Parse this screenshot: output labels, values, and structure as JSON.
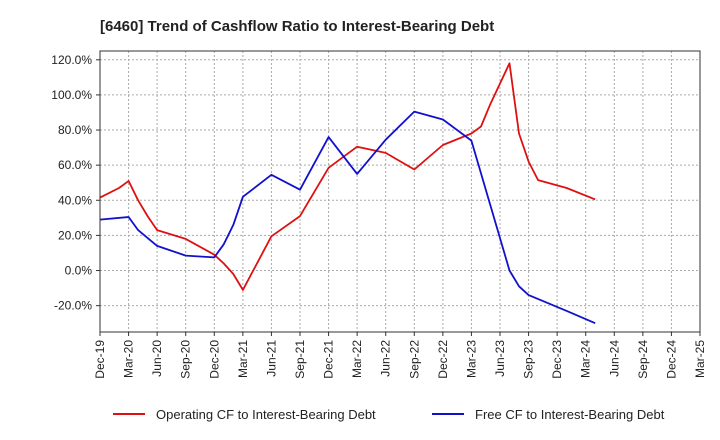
{
  "chart_data": {
    "type": "line",
    "title": "[6460]  Trend of Cashflow Ratio to Interest-Bearing Debt",
    "xlabel": "",
    "ylabel": "",
    "ylim": [
      -35,
      125
    ],
    "y_ticks": [
      -20,
      0,
      20,
      40,
      60,
      80,
      100,
      120
    ],
    "y_tick_labels": [
      "-20.0%",
      "0.0%",
      "20.0%",
      "40.0%",
      "60.0%",
      "80.0%",
      "100.0%",
      "120.0%"
    ],
    "x_tick_labels": [
      "Dec-19",
      "Mar-20",
      "Jun-20",
      "Sep-20",
      "Dec-20",
      "Mar-21",
      "Jun-21",
      "Sep-21",
      "Dec-21",
      "Mar-22",
      "Jun-22",
      "Sep-22",
      "Dec-22",
      "Mar-23",
      "Jun-23",
      "Sep-23",
      "Dec-23",
      "Mar-24",
      "Jun-24",
      "Sep-24",
      "Dec-24",
      "Mar-25"
    ],
    "x_range_months": [
      0,
      63
    ],
    "grid": true,
    "legend_position": "bottom",
    "series": [
      {
        "name": "Operating CF to Interest-Bearing Debt",
        "color": "#dd1111",
        "points": [
          [
            0,
            41.5
          ],
          [
            2,
            47
          ],
          [
            3,
            51
          ],
          [
            4,
            40
          ],
          [
            5,
            31
          ],
          [
            6,
            23
          ],
          [
            9,
            18
          ],
          [
            12,
            9
          ],
          [
            13,
            4
          ],
          [
            14,
            -2
          ],
          [
            15,
            -11
          ],
          [
            18,
            19.5
          ],
          [
            21,
            31
          ],
          [
            24,
            58.5
          ],
          [
            27,
            70.5
          ],
          [
            30,
            67
          ],
          [
            33,
            57.5
          ],
          [
            36,
            71.5
          ],
          [
            39,
            78
          ],
          [
            40,
            82
          ],
          [
            41,
            95
          ],
          [
            43,
            118
          ],
          [
            44,
            78
          ],
          [
            45,
            62
          ],
          [
            46,
            51.5
          ],
          [
            49,
            47
          ],
          [
            52,
            40.5
          ]
        ]
      },
      {
        "name": "Free CF to Interest-Bearing Debt",
        "color": "#1111cc",
        "points": [
          [
            0,
            29
          ],
          [
            3,
            30.5
          ],
          [
            4,
            23
          ],
          [
            6,
            14
          ],
          [
            9,
            8.5
          ],
          [
            12,
            7.5
          ],
          [
            13,
            15
          ],
          [
            14,
            26
          ],
          [
            15,
            42
          ],
          [
            18,
            54.5
          ],
          [
            21,
            46
          ],
          [
            24,
            76
          ],
          [
            27,
            55
          ],
          [
            30,
            74.5
          ],
          [
            33,
            90.5
          ],
          [
            36,
            86
          ],
          [
            39,
            74
          ],
          [
            43,
            0
          ],
          [
            44,
            -9
          ],
          [
            45,
            -14
          ],
          [
            49,
            -23
          ],
          [
            52,
            -30
          ]
        ]
      }
    ]
  }
}
